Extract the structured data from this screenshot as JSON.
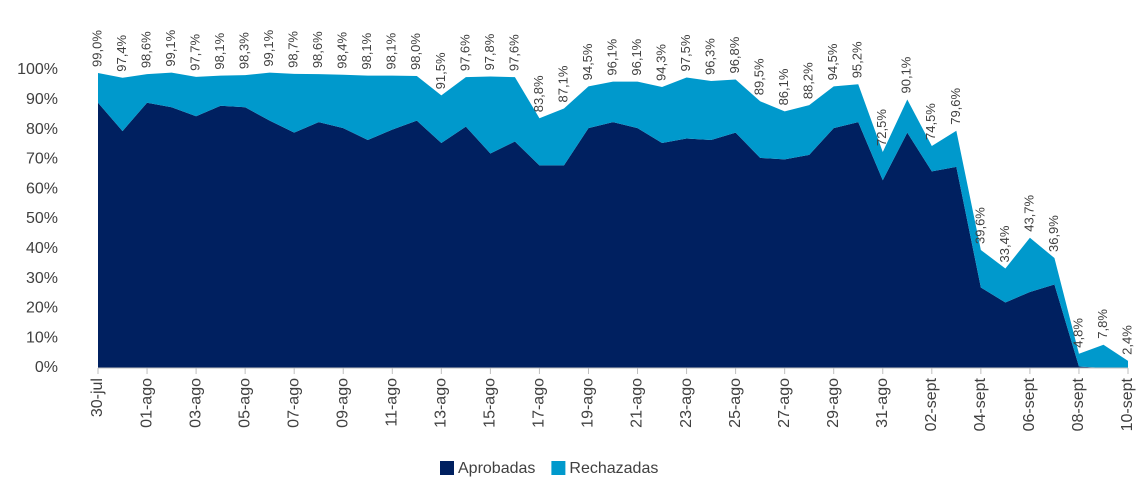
{
  "chart_data": {
    "type": "stacked-area",
    "categories": [
      "30-jul",
      null,
      "01-ago",
      null,
      "03-ago",
      null,
      "05-ago",
      null,
      "07-ago",
      null,
      "09-ago",
      null,
      "11-ago",
      null,
      "13-ago",
      null,
      "15-ago",
      null,
      "17-ago",
      null,
      "19-ago",
      null,
      "21-ago",
      null,
      "23-ago",
      null,
      "25-ago",
      null,
      "27-ago",
      null,
      "29-ago",
      null,
      "31-ago",
      null,
      "02-sept",
      null,
      "04-sept",
      null,
      "06-sept",
      null,
      "08-sept",
      null,
      "10-sept"
    ],
    "series": [
      {
        "name": "Aprobadas",
        "color": "#002060",
        "values": [
          89,
          79.5,
          89,
          87.5,
          84.5,
          88,
          87.5,
          83,
          79,
          82.5,
          80.5,
          76.5,
          80,
          83,
          75.5,
          81,
          72,
          76,
          68,
          68,
          80.5,
          82.5,
          80.5,
          75.5,
          77,
          76.5,
          79,
          70.5,
          70,
          71.5,
          80.5,
          82.5,
          63,
          79,
          66,
          67.5,
          27,
          22,
          25.5,
          28,
          0.5,
          0,
          0
        ]
      },
      {
        "name": "Rechazadas",
        "color": "#0099cc",
        "values": [
          10.0,
          17.9,
          9.6,
          11.6,
          13.2,
          10.1,
          10.8,
          16.1,
          19.7,
          16.1,
          17.9,
          21.6,
          18.1,
          15.0,
          16.0,
          16.6,
          25.8,
          21.6,
          15.8,
          19.1,
          14.0,
          13.6,
          15.6,
          18.8,
          20.5,
          19.8,
          17.8,
          19.0,
          16.1,
          16.7,
          14.0,
          12.7,
          9.5,
          11.1,
          8.5,
          12.1,
          12.6,
          11.4,
          18.2,
          8.9,
          4.3,
          7.8,
          2.4
        ]
      }
    ],
    "totals": [
      99.0,
      97.4,
      98.6,
      99.1,
      97.7,
      98.1,
      98.3,
      99.1,
      98.7,
      98.6,
      98.4,
      98.1,
      98.1,
      98.0,
      91.5,
      97.6,
      97.8,
      97.6,
      83.8,
      87.1,
      94.5,
      96.1,
      96.1,
      94.3,
      97.5,
      96.3,
      96.8,
      89.5,
      86.1,
      88.2,
      94.5,
      95.2,
      72.5,
      90.1,
      74.5,
      79.6,
      39.6,
      33.4,
      43.7,
      36.9,
      4.8,
      7.8,
      2.4
    ],
    "total_labels": [
      "99,0%",
      "97,4%",
      "98,6%",
      "99,1%",
      "97,7%",
      "98,1%",
      "98,3%",
      "99,1%",
      "98,7%",
      "98,6%",
      "98,4%",
      "98,1%",
      "98,1%",
      "98,0%",
      "91,5%",
      "97,6%",
      "97,8%",
      "97,6%",
      "83,8%",
      "87,1%",
      "94,5%",
      "96,1%",
      "96,1%",
      "94,3%",
      "97,5%",
      "96,3%",
      "96,8%",
      "89,5%",
      "86,1%",
      "88,2%",
      "94,5%",
      "95,2%",
      "72,5%",
      "90,1%",
      "74,5%",
      "79,6%",
      "39,6%",
      "33,4%",
      "43,7%",
      "36,9%",
      "4,8%",
      "7,8%",
      "2,4%"
    ],
    "ylim": [
      0,
      100
    ],
    "yticks": [
      {
        "value": 0,
        "label": "0%"
      },
      {
        "value": 10,
        "label": "10%"
      },
      {
        "value": 20,
        "label": "20%"
      },
      {
        "value": 30,
        "label": "30%"
      },
      {
        "value": 40,
        "label": "40%"
      },
      {
        "value": 50,
        "label": "50%"
      },
      {
        "value": 60,
        "label": "60%"
      },
      {
        "value": 70,
        "label": "70%"
      },
      {
        "value": 80,
        "label": "80%"
      },
      {
        "value": 90,
        "label": "90%"
      },
      {
        "value": 100,
        "label": "100%"
      }
    ],
    "grid": false,
    "legend": "bottom"
  }
}
